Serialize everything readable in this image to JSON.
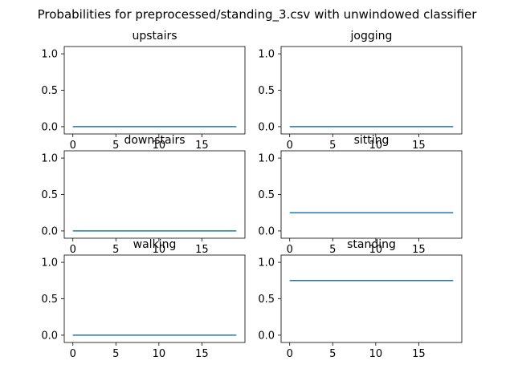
{
  "chart_data": {
    "title": "Probabilities for preprocessed/standing_3.csv with unwindowed classifier",
    "type": "line",
    "line_color": "#1f77b4",
    "grid": false,
    "xlim": [
      -1,
      20
    ],
    "ylim": [
      -0.1,
      1.1
    ],
    "xticks": [
      0,
      5,
      10,
      15
    ],
    "yticks": [
      0.0,
      0.5,
      1.0
    ],
    "ytick_labels": [
      "0.0",
      "0.5",
      "1.0"
    ],
    "subplots": [
      {
        "title": "upstairs",
        "x": [
          0,
          19
        ],
        "y": [
          0.0,
          0.0
        ]
      },
      {
        "title": "jogging",
        "x": [
          0,
          19
        ],
        "y": [
          0.0,
          0.0
        ]
      },
      {
        "title": "downstairs",
        "x": [
          0,
          19
        ],
        "y": [
          0.0,
          0.0
        ]
      },
      {
        "title": "sitting",
        "x": [
          0,
          19
        ],
        "y": [
          0.25,
          0.25
        ]
      },
      {
        "title": "walking",
        "x": [
          0,
          19
        ],
        "y": [
          0.0,
          0.0
        ]
      },
      {
        "title": "standing",
        "x": [
          0,
          19
        ],
        "y": [
          0.75,
          0.75
        ]
      }
    ]
  }
}
